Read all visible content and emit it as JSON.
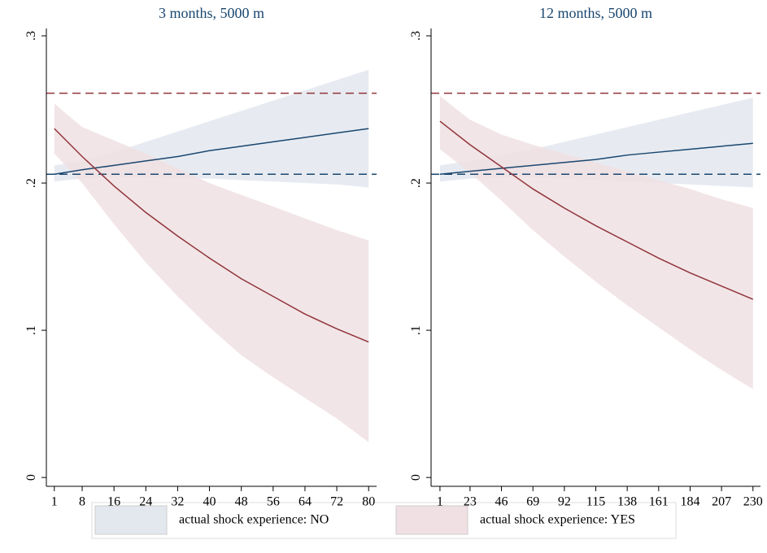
{
  "chart_data": [
    {
      "type": "line",
      "title": "3 months, 5000 m",
      "x": [
        1,
        8,
        16,
        24,
        32,
        40,
        48,
        56,
        64,
        72,
        80
      ],
      "xlim": [
        -1,
        82
      ],
      "xticks": [
        1,
        8,
        16,
        24,
        32,
        40,
        48,
        56,
        64,
        72,
        80
      ],
      "ylim": [
        -0.006,
        0.305
      ],
      "yticks": [
        0,
        {
          "value": 0.1,
          "label": ".1"
        },
        {
          "value": 0.2,
          "label": ".2"
        },
        {
          "value": 0.3,
          "label": ".3"
        }
      ],
      "reference_lines": [
        {
          "value": 0.261,
          "color": "#90353b"
        },
        {
          "value": 0.206,
          "color": "#1a476f"
        }
      ],
      "series": [
        {
          "color": "#1a476f",
          "band_color": "#e3e8ee",
          "values": [
            0.206,
            0.209,
            0.212,
            0.215,
            0.218,
            0.222,
            0.225,
            0.228,
            0.231,
            0.234,
            0.237
          ],
          "upper": [
            0.212,
            0.215,
            0.221,
            0.228,
            0.235,
            0.242,
            0.249,
            0.256,
            0.263,
            0.27,
            0.277
          ],
          "lower": [
            0.201,
            0.203,
            0.204,
            0.204,
            0.203,
            0.203,
            0.202,
            0.201,
            0.2,
            0.199,
            0.197
          ]
        },
        {
          "color": "#90353b",
          "band_color": "#f0e0e3",
          "values": [
            0.237,
            0.218,
            0.198,
            0.18,
            0.164,
            0.149,
            0.135,
            0.123,
            0.111,
            0.101,
            0.092
          ],
          "upper": [
            0.254,
            0.238,
            0.229,
            0.22,
            0.21,
            0.2,
            0.192,
            0.184,
            0.176,
            0.168,
            0.161
          ],
          "lower": [
            0.22,
            0.2,
            0.172,
            0.146,
            0.123,
            0.102,
            0.083,
            0.068,
            0.054,
            0.04,
            0.024
          ]
        }
      ]
    },
    {
      "type": "line",
      "title": "12 months, 5000 m",
      "x": [
        1,
        23,
        46,
        69,
        92,
        115,
        138,
        161,
        184,
        207,
        230
      ],
      "xlim": [
        -5.5,
        235.5
      ],
      "xticks": [
        1,
        23,
        46,
        69,
        92,
        115,
        138,
        161,
        184,
        207,
        230
      ],
      "ylim": [
        -0.006,
        0.305
      ],
      "yticks": [
        0,
        {
          "value": 0.1,
          "label": ".1"
        },
        {
          "value": 0.2,
          "label": ".2"
        },
        {
          "value": 0.3,
          "label": ".3"
        }
      ],
      "reference_lines": [
        {
          "value": 0.261,
          "color": "#90353b"
        },
        {
          "value": 0.206,
          "color": "#1a476f"
        }
      ],
      "series": [
        {
          "color": "#1a476f",
          "band_color": "#e3e8ee",
          "values": [
            0.206,
            0.208,
            0.21,
            0.212,
            0.214,
            0.216,
            0.219,
            0.221,
            0.223,
            0.225,
            0.227
          ],
          "upper": [
            0.212,
            0.215,
            0.219,
            0.223,
            0.228,
            0.233,
            0.238,
            0.243,
            0.248,
            0.253,
            0.258
          ],
          "lower": [
            0.201,
            0.203,
            0.204,
            0.204,
            0.203,
            0.202,
            0.201,
            0.2,
            0.199,
            0.198,
            0.197
          ]
        },
        {
          "color": "#90353b",
          "band_color": "#f0e0e3",
          "values": [
            0.242,
            0.226,
            0.211,
            0.196,
            0.183,
            0.171,
            0.16,
            0.149,
            0.139,
            0.13,
            0.121
          ],
          "upper": [
            0.259,
            0.243,
            0.233,
            0.226,
            0.22,
            0.214,
            0.208,
            0.202,
            0.196,
            0.189,
            0.183
          ],
          "lower": [
            0.223,
            0.207,
            0.188,
            0.168,
            0.15,
            0.133,
            0.117,
            0.102,
            0.087,
            0.073,
            0.06
          ]
        }
      ]
    }
  ],
  "legend": [
    {
      "label": "actual shock experience: NO",
      "color": "#e3e8ee"
    },
    {
      "label": "actual shock experience: YES",
      "color": "#f0e0e3"
    }
  ]
}
